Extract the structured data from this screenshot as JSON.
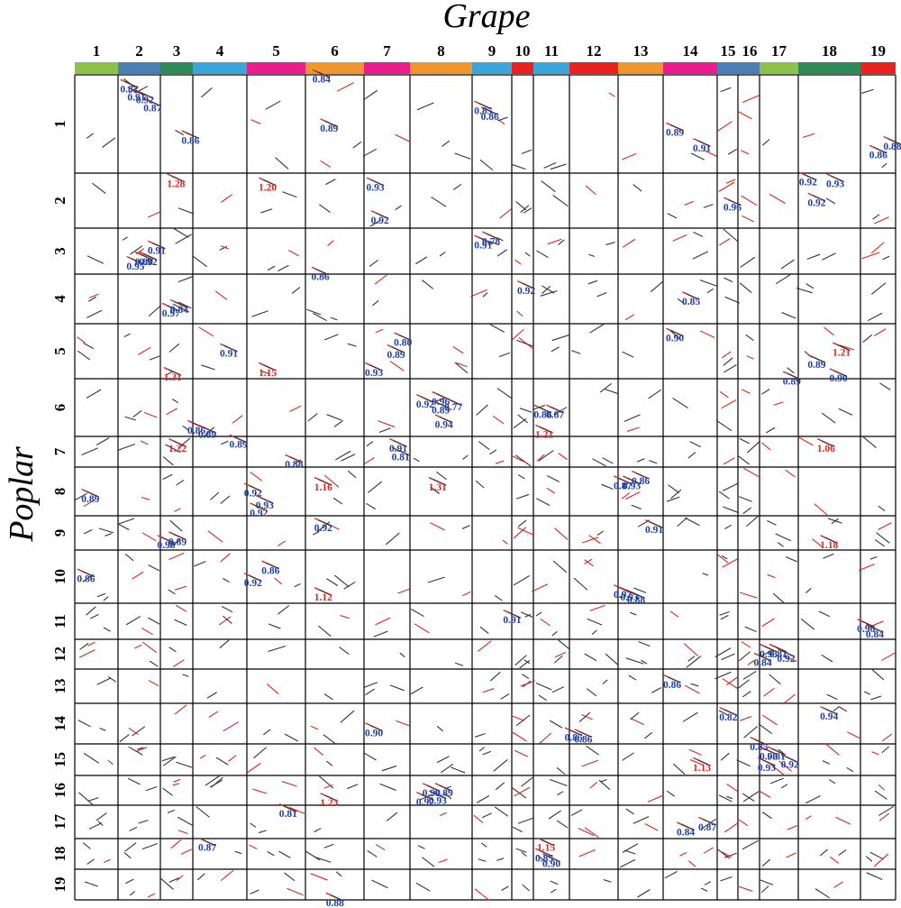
{
  "chart_data": {
    "type": "scatter",
    "xlabel": "Grape",
    "ylabel": "Poplar",
    "colors": {
      "high": "#e8231f",
      "low": "#1f3fa8",
      "dot_red": "#d7261e",
      "dot_dark": "#333333"
    },
    "grape_chromosomes": [
      {
        "name": "1",
        "color": "#8cc14a"
      },
      {
        "name": "2",
        "color": "#4a7fb5"
      },
      {
        "name": "3",
        "color": "#2e8b57"
      },
      {
        "name": "4",
        "color": "#3aa7d8"
      },
      {
        "name": "5",
        "color": "#e91e8c"
      },
      {
        "name": "6",
        "color": "#f0962e"
      },
      {
        "name": "7",
        "color": "#e91e8c"
      },
      {
        "name": "8",
        "color": "#f0962e"
      },
      {
        "name": "9",
        "color": "#3aa7d8"
      },
      {
        "name": "10",
        "color": "#e8231f"
      },
      {
        "name": "11",
        "color": "#3aa7d8"
      },
      {
        "name": "12",
        "color": "#e8231f"
      },
      {
        "name": "13",
        "color": "#f0962e"
      },
      {
        "name": "14",
        "color": "#e91e8c"
      },
      {
        "name": "15",
        "color": "#4a7fb5"
      },
      {
        "name": "16",
        "color": "#4a7fb5"
      },
      {
        "name": "17",
        "color": "#8cc14a"
      },
      {
        "name": "18",
        "color": "#2e8b57"
      },
      {
        "name": "19",
        "color": "#e8231f"
      }
    ],
    "poplar_chromosomes": [
      "1",
      "2",
      "3",
      "4",
      "5",
      "6",
      "7",
      "8",
      "9",
      "10",
      "11",
      "12",
      "13",
      "14",
      "15",
      "16",
      "17",
      "18",
      "19"
    ],
    "labels": [
      {
        "x": 2,
        "y": 1,
        "fx": 0.05,
        "fy": 0.18,
        "text": "0.82",
        "level": "low"
      },
      {
        "x": 2,
        "y": 1,
        "fx": 0.22,
        "fy": 0.26,
        "text": "0.91",
        "level": "low"
      },
      {
        "x": 2,
        "y": 1,
        "fx": 0.42,
        "fy": 0.29,
        "text": "0.92",
        "level": "low"
      },
      {
        "x": 2,
        "y": 1,
        "fx": 0.6,
        "fy": 0.37,
        "text": "0.87",
        "level": "low"
      },
      {
        "x": 3,
        "y": 1,
        "fx": 0.65,
        "fy": 0.7,
        "text": "0.86",
        "level": "low"
      },
      {
        "x": 6,
        "y": 1,
        "fx": 0.12,
        "fy": 0.08,
        "text": "0.84",
        "level": "low"
      },
      {
        "x": 6,
        "y": 1,
        "fx": 0.25,
        "fy": 0.58,
        "text": "0.89",
        "level": "low"
      },
      {
        "x": 9,
        "y": 1,
        "fx": 0.05,
        "fy": 0.4,
        "text": "0.85",
        "level": "low"
      },
      {
        "x": 9,
        "y": 1,
        "fx": 0.22,
        "fy": 0.46,
        "text": "0.86",
        "level": "low"
      },
      {
        "x": 14,
        "y": 1,
        "fx": 0.05,
        "fy": 0.62,
        "text": "0.89",
        "level": "low"
      },
      {
        "x": 14,
        "y": 1,
        "fx": 0.55,
        "fy": 0.78,
        "text": "0.91",
        "level": "low"
      },
      {
        "x": 19,
        "y": 1,
        "fx": 0.25,
        "fy": 0.85,
        "text": "0.86",
        "level": "low"
      },
      {
        "x": 19,
        "y": 1,
        "fx": 0.65,
        "fy": 0.76,
        "text": "0.88",
        "level": "low"
      },
      {
        "x": 3,
        "y": 2,
        "fx": 0.2,
        "fy": 0.25,
        "text": "1.28",
        "level": "high"
      },
      {
        "x": 5,
        "y": 2,
        "fx": 0.2,
        "fy": 0.32,
        "text": "1.20",
        "level": "high"
      },
      {
        "x": 7,
        "y": 2,
        "fx": 0.05,
        "fy": 0.32,
        "text": "0.93",
        "level": "low"
      },
      {
        "x": 7,
        "y": 2,
        "fx": 0.15,
        "fy": 0.92,
        "text": "0.92",
        "level": "low"
      },
      {
        "x": 15,
        "y": 2,
        "fx": 0.3,
        "fy": 0.68,
        "text": "0.96",
        "level": "low"
      },
      {
        "x": 18,
        "y": 2,
        "fx": 0.01,
        "fy": 0.22,
        "text": "0.92",
        "level": "low"
      },
      {
        "x": 18,
        "y": 2,
        "fx": 0.45,
        "fy": 0.25,
        "text": "0.93",
        "level": "low"
      },
      {
        "x": 18,
        "y": 2,
        "fx": 0.15,
        "fy": 0.6,
        "text": "0.92",
        "level": "low"
      },
      {
        "x": 2,
        "y": 3,
        "fx": 0.2,
        "fy": 0.9,
        "text": "0.95",
        "level": "low"
      },
      {
        "x": 2,
        "y": 3,
        "fx": 0.4,
        "fy": 0.8,
        "text": "0.80",
        "level": "low"
      },
      {
        "x": 2,
        "y": 3,
        "fx": 0.5,
        "fy": 0.8,
        "text": "0.92",
        "level": "low"
      },
      {
        "x": 2,
        "y": 3,
        "fx": 0.7,
        "fy": 0.56,
        "text": "0.91",
        "level": "low"
      },
      {
        "x": 9,
        "y": 3,
        "fx": 0.05,
        "fy": 0.44,
        "text": "0.91",
        "level": "low"
      },
      {
        "x": 9,
        "y": 3,
        "fx": 0.25,
        "fy": 0.36,
        "text": "0.78",
        "level": "low"
      },
      {
        "x": 6,
        "y": 4,
        "fx": 0.1,
        "fy": 0.12,
        "text": "0.86",
        "level": "low"
      },
      {
        "x": 10,
        "y": 4,
        "fx": 0.25,
        "fy": 0.4,
        "text": "0.92",
        "level": "low"
      },
      {
        "x": 14,
        "y": 4,
        "fx": 0.35,
        "fy": 0.62,
        "text": "0.85",
        "level": "low"
      },
      {
        "x": 3,
        "y": 4,
        "fx": 0.05,
        "fy": 0.85,
        "text": "0.97",
        "level": "low"
      },
      {
        "x": 3,
        "y": 4,
        "fx": 0.3,
        "fy": 0.78,
        "text": "0.84",
        "level": "low"
      },
      {
        "x": 4,
        "y": 5,
        "fx": 0.5,
        "fy": 0.6,
        "text": "0.91",
        "level": "low"
      },
      {
        "x": 7,
        "y": 5,
        "fx": 0.65,
        "fy": 0.4,
        "text": "0.80",
        "level": "low"
      },
      {
        "x": 7,
        "y": 5,
        "fx": 0.5,
        "fy": 0.62,
        "text": "0.89",
        "level": "low"
      },
      {
        "x": 14,
        "y": 5,
        "fx": 0.05,
        "fy": 0.32,
        "text": "0.90",
        "level": "low"
      },
      {
        "x": 18,
        "y": 5,
        "fx": 0.15,
        "fy": 0.8,
        "text": "0.89",
        "level": "low"
      },
      {
        "x": 18,
        "y": 5,
        "fx": 0.55,
        "fy": 0.58,
        "text": "1.21",
        "level": "high"
      },
      {
        "x": 3,
        "y": 6,
        "fx": 0.1,
        "fy": 0.03,
        "text": "1.31",
        "level": "high"
      },
      {
        "x": 5,
        "y": 6,
        "fx": 0.2,
        "fy": -0.05,
        "text": "1.15",
        "level": "high"
      },
      {
        "x": 7,
        "y": 6,
        "fx": 0.02,
        "fy": -0.05,
        "text": "0.93",
        "level": "low"
      },
      {
        "x": 17,
        "y": 6,
        "fx": 0.6,
        "fy": 0.1,
        "text": "0.89",
        "level": "low"
      },
      {
        "x": 18,
        "y": 6,
        "fx": 0.5,
        "fy": 0.05,
        "text": "0.90",
        "level": "low"
      },
      {
        "x": 8,
        "y": 6,
        "fx": 0.1,
        "fy": 0.5,
        "text": "0.92",
        "level": "low"
      },
      {
        "x": 8,
        "y": 6,
        "fx": 0.35,
        "fy": 0.45,
        "text": "0.96",
        "level": "low"
      },
      {
        "x": 8,
        "y": 6,
        "fx": 0.35,
        "fy": 0.6,
        "text": "0.89",
        "level": "low"
      },
      {
        "x": 8,
        "y": 6,
        "fx": 0.55,
        "fy": 0.55,
        "text": "0.77",
        "level": "low"
      },
      {
        "x": 8,
        "y": 6,
        "fx": 0.4,
        "fy": 0.85,
        "text": "0.94",
        "level": "low"
      },
      {
        "x": 11,
        "y": 6,
        "fx": 0.01,
        "fy": 0.68,
        "text": "0.86",
        "level": "low"
      },
      {
        "x": 11,
        "y": 6,
        "fx": 0.35,
        "fy": 0.68,
        "text": "0.87",
        "level": "low"
      },
      {
        "x": 4,
        "y": 6,
        "fx": -0.1,
        "fy": 0.95,
        "text": "0.86",
        "level": "low"
      },
      {
        "x": 4,
        "y": 7,
        "fx": 0.1,
        "fy": 0.05,
        "text": "0.89",
        "level": "low"
      },
      {
        "x": 5,
        "y": 7,
        "fx": -0.3,
        "fy": 0.37,
        "text": "0.89",
        "level": "low"
      },
      {
        "x": 3,
        "y": 7,
        "fx": 0.25,
        "fy": 0.5,
        "text": "1.22",
        "level": "high"
      },
      {
        "x": 7,
        "y": 7,
        "fx": 0.55,
        "fy": 0.5,
        "text": "0.91",
        "level": "low"
      },
      {
        "x": 7,
        "y": 7,
        "fx": 0.6,
        "fy": 0.78,
        "text": "0.81",
        "level": "low"
      },
      {
        "x": 11,
        "y": 7,
        "fx": 0.05,
        "fy": 0.05,
        "text": "1.21",
        "level": "high"
      },
      {
        "x": 18,
        "y": 7,
        "fx": 0.3,
        "fy": 0.5,
        "text": "1.06",
        "level": "high"
      },
      {
        "x": 5,
        "y": 7,
        "fx": 0.65,
        "fy": 1.02,
        "text": "0.88",
        "level": "low"
      },
      {
        "x": 1,
        "y": 8,
        "fx": 0.15,
        "fy": 0.72,
        "text": "0.89",
        "level": "low"
      },
      {
        "x": 6,
        "y": 8,
        "fx": 0.15,
        "fy": 0.48,
        "text": "1.16",
        "level": "high"
      },
      {
        "x": 8,
        "y": 8,
        "fx": 0.3,
        "fy": 0.48,
        "text": "1.31",
        "level": "high"
      },
      {
        "x": 5,
        "y": 8,
        "fx": -0.05,
        "fy": 0.6,
        "text": "0.92",
        "level": "low"
      },
      {
        "x": 5,
        "y": 8,
        "fx": 0.15,
        "fy": 0.85,
        "text": "0.93",
        "level": "low"
      },
      {
        "x": 13,
        "y": 8,
        "fx": -0.1,
        "fy": 0.45,
        "text": "0.87",
        "level": "low"
      },
      {
        "x": 13,
        "y": 8,
        "fx": 0.1,
        "fy": 0.45,
        "text": "0.93",
        "level": "low"
      },
      {
        "x": 13,
        "y": 8,
        "fx": 0.3,
        "fy": 0.35,
        "text": "0.86",
        "level": "low"
      },
      {
        "x": 5,
        "y": 9,
        "fx": 0.05,
        "fy": 0.01,
        "text": "0.92",
        "level": "low"
      },
      {
        "x": 6,
        "y": 9,
        "fx": 0.15,
        "fy": 0.45,
        "text": "0.92",
        "level": "low"
      },
      {
        "x": 3,
        "y": 9,
        "fx": -0.1,
        "fy": 0.95,
        "text": "0.98",
        "level": "low"
      },
      {
        "x": 3,
        "y": 9,
        "fx": 0.25,
        "fy": 0.85,
        "text": "0.89",
        "level": "low"
      },
      {
        "x": 13,
        "y": 9,
        "fx": 0.6,
        "fy": 0.5,
        "text": "0.91",
        "level": "low"
      },
      {
        "x": 18,
        "y": 9,
        "fx": 0.35,
        "fy": 0.95,
        "text": "1.18",
        "level": "high"
      },
      {
        "x": 1,
        "y": 10,
        "fx": 0.05,
        "fy": 0.6,
        "text": "0.86",
        "level": "low"
      },
      {
        "x": 5,
        "y": 10,
        "fx": -0.05,
        "fy": 0.68,
        "text": "0.92",
        "level": "low"
      },
      {
        "x": 5,
        "y": 10,
        "fx": 0.25,
        "fy": 0.45,
        "text": "0.86",
        "level": "low"
      },
      {
        "x": 6,
        "y": 10,
        "fx": 0.15,
        "fy": 0.95,
        "text": "1.12",
        "level": "high"
      },
      {
        "x": 13,
        "y": 10,
        "fx": -0.1,
        "fy": 0.9,
        "text": "0.92",
        "level": "low"
      },
      {
        "x": 13,
        "y": 10,
        "fx": 0.05,
        "fy": 0.95,
        "text": "0.93",
        "level": "low"
      },
      {
        "x": 13,
        "y": 10,
        "fx": 0.2,
        "fy": 1.0,
        "text": "0.88",
        "level": "low"
      },
      {
        "x": 10,
        "y": 11,
        "fx": -0.4,
        "fy": 0.55,
        "text": "0.91",
        "level": "low"
      },
      {
        "x": 19,
        "y": 11,
        "fx": -0.1,
        "fy": 0.8,
        "text": "0.90",
        "level": "low"
      },
      {
        "x": 19,
        "y": 11,
        "fx": 0.15,
        "fy": 0.95,
        "text": "0.84",
        "level": "low"
      },
      {
        "x": 17,
        "y": 12,
        "fx": 0.0,
        "fy": 0.6,
        "text": "0.93",
        "level": "low"
      },
      {
        "x": 17,
        "y": 12,
        "fx": 0.25,
        "fy": 0.6,
        "text": "0.81",
        "level": "low"
      },
      {
        "x": 17,
        "y": 12,
        "fx": 0.45,
        "fy": 0.75,
        "text": "0.92",
        "level": "low"
      },
      {
        "x": 17,
        "y": 12,
        "fx": -0.15,
        "fy": 0.9,
        "text": "0.84",
        "level": "low"
      },
      {
        "x": 14,
        "y": 13,
        "fx": 0.0,
        "fy": 0.55,
        "text": "0.86",
        "level": "low"
      },
      {
        "x": 15,
        "y": 14,
        "fx": 0.1,
        "fy": 0.42,
        "text": "0.82",
        "level": "low"
      },
      {
        "x": 18,
        "y": 14,
        "fx": 0.35,
        "fy": 0.4,
        "text": "0.94",
        "level": "low"
      },
      {
        "x": 7,
        "y": 15,
        "fx": 0.02,
        "fy": -0.25,
        "text": "0.90",
        "level": "low"
      },
      {
        "x": 12,
        "y": 15,
        "fx": -0.1,
        "fy": -0.1,
        "text": "0.85",
        "level": "low"
      },
      {
        "x": 12,
        "y": 15,
        "fx": 0.1,
        "fy": -0.05,
        "text": "0.86",
        "level": "low"
      },
      {
        "x": 17,
        "y": 15,
        "fx": -0.25,
        "fy": 0.2,
        "text": "0.85",
        "level": "low"
      },
      {
        "x": 17,
        "y": 15,
        "fx": 0.0,
        "fy": 0.5,
        "text": "0.96",
        "level": "low"
      },
      {
        "x": 17,
        "y": 15,
        "fx": 0.2,
        "fy": 0.5,
        "text": "0.81",
        "level": "low"
      },
      {
        "x": 17,
        "y": 15,
        "fx": 0.55,
        "fy": 0.75,
        "text": "0.92",
        "level": "low"
      },
      {
        "x": 17,
        "y": 15,
        "fx": -0.05,
        "fy": 0.85,
        "text": "0.93",
        "level": "low"
      },
      {
        "x": 14,
        "y": 15,
        "fx": 0.55,
        "fy": 0.85,
        "text": "1.13",
        "level": "high"
      },
      {
        "x": 8,
        "y": 16,
        "fx": 0.2,
        "fy": 0.7,
        "text": "0.90",
        "level": "low"
      },
      {
        "x": 8,
        "y": 16,
        "fx": 0.4,
        "fy": 0.7,
        "text": "0.89",
        "level": "low"
      },
      {
        "x": 8,
        "y": 16,
        "fx": 0.1,
        "fy": 1.0,
        "text": "0.92",
        "level": "low"
      },
      {
        "x": 8,
        "y": 16,
        "fx": 0.3,
        "fy": 0.95,
        "text": "0.93",
        "level": "low"
      },
      {
        "x": 6,
        "y": 17,
        "fx": 0.25,
        "fy": 0.03,
        "text": "1.23",
        "level": "high"
      },
      {
        "x": 5,
        "y": 17,
        "fx": 0.55,
        "fy": 0.35,
        "text": "0.81",
        "level": "low"
      },
      {
        "x": 14,
        "y": 17,
        "fx": 0.25,
        "fy": 0.9,
        "text": "0.84",
        "level": "low"
      },
      {
        "x": 14,
        "y": 17,
        "fx": 0.65,
        "fy": 0.75,
        "text": "0.87",
        "level": "low"
      },
      {
        "x": 4,
        "y": 18,
        "fx": 0.1,
        "fy": 0.4,
        "text": "0.87",
        "level": "low"
      },
      {
        "x": 11,
        "y": 18,
        "fx": 0.1,
        "fy": 0.4,
        "text": "1.15",
        "level": "high"
      },
      {
        "x": 11,
        "y": 18,
        "fx": 0.05,
        "fy": 0.75,
        "text": "0.85",
        "level": "low"
      },
      {
        "x": 11,
        "y": 18,
        "fx": 0.25,
        "fy": 0.92,
        "text": "0.90",
        "level": "low"
      },
      {
        "x": 6,
        "y": 19,
        "fx": 0.35,
        "fy": 1.2,
        "text": "0.88",
        "level": "low"
      }
    ]
  }
}
